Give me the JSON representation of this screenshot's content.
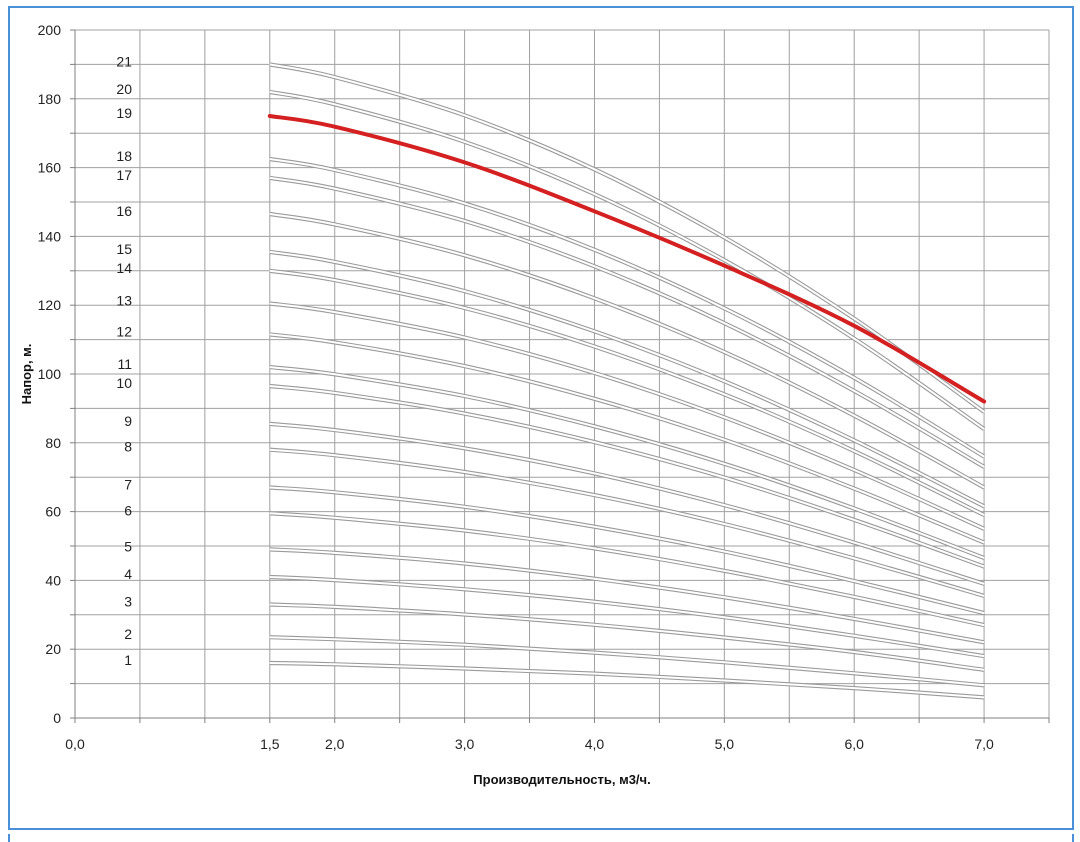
{
  "chart_data": {
    "type": "line",
    "title": "",
    "xlabel": "Производительность, м3/ч.",
    "ylabel": "Напор, м.",
    "xlim": [
      0,
      7.5
    ],
    "ylim": [
      0,
      200
    ],
    "grid": true,
    "legend": "none",
    "x_ticks": [
      {
        "value": 0,
        "label": "0,0"
      },
      {
        "value": 1.5,
        "label": "1,5"
      },
      {
        "value": 2,
        "label": "2,0"
      },
      {
        "value": 3,
        "label": "3,0"
      },
      {
        "value": 4,
        "label": "4,0"
      },
      {
        "value": 5,
        "label": "5,0"
      },
      {
        "value": 6,
        "label": "6,0"
      },
      {
        "value": 7,
        "label": "7,0"
      }
    ],
    "y_ticks": [
      0,
      20,
      40,
      60,
      80,
      100,
      120,
      140,
      160,
      180,
      200
    ],
    "colors": {
      "curve": "#c8c8c8",
      "highlight": "#d42020",
      "grid": "#a0a0a0"
    },
    "x": [
      1.5,
      2,
      3,
      4,
      5,
      6,
      7
    ],
    "series": [
      {
        "name": "1",
        "values": [
          16,
          15.6,
          14.4,
          12.9,
          10.9,
          8.7,
          6
        ]
      },
      {
        "name": "2",
        "values": [
          23.5,
          22.9,
          21.3,
          19,
          16.2,
          13,
          9.5
        ]
      },
      {
        "name": "3",
        "values": [
          33,
          32.3,
          30.1,
          27.1,
          23.4,
          19.2,
          14
        ]
      },
      {
        "name": "4",
        "values": [
          41,
          40.1,
          37.4,
          33.8,
          29.3,
          23.9,
          18
        ]
      },
      {
        "name": "5",
        "values": [
          49,
          48,
          44.9,
          40.5,
          35.1,
          28.8,
          22
        ]
      },
      {
        "name": "6",
        "values": [
          59.5,
          58.2,
          54.5,
          49.3,
          42.8,
          35.2,
          27
        ]
      },
      {
        "name": "7",
        "values": [
          67,
          65.6,
          61.4,
          55.6,
          48.4,
          39.8,
          30.5
        ]
      },
      {
        "name": "8",
        "values": [
          78,
          76.4,
          71.5,
          64.8,
          56.4,
          46.4,
          35.5
        ]
      },
      {
        "name": "9",
        "values": [
          85.5,
          83.7,
          78.4,
          71.1,
          61.9,
          51,
          39
        ]
      },
      {
        "name": "10",
        "values": [
          96.5,
          94.5,
          88.5,
          80.2,
          69.9,
          57.6,
          44
        ]
      },
      {
        "name": "11",
        "values": [
          102,
          99.9,
          93.6,
          84.8,
          73.9,
          60.9,
          46.5
        ]
      },
      {
        "name": "12",
        "values": [
          111.5,
          109.2,
          102.3,
          92.8,
          80.9,
          66.7,
          51
        ]
      },
      {
        "name": "13",
        "values": [
          120.5,
          118,
          110.6,
          100.3,
          87.4,
          72.1,
          55
        ]
      },
      {
        "name": "14",
        "values": [
          130,
          127.3,
          119.2,
          108,
          94.1,
          77.6,
          59
        ]
      },
      {
        "name": "15",
        "values": [
          135.5,
          132.6,
          124.1,
          112.4,
          97.9,
          80.7,
          61.5
        ]
      },
      {
        "name": "16",
        "values": [
          146.5,
          143.5,
          134.5,
          122,
          106.4,
          87.9,
          67
        ]
      },
      {
        "name": "17",
        "values": [
          157,
          153.9,
          144.5,
          131.3,
          114.8,
          95.1,
          73
        ]
      },
      {
        "name": "18",
        "values": [
          162.5,
          159.3,
          149.6,
          136.1,
          119.1,
          98.9,
          76
        ]
      },
      {
        "name": "19",
        "values": [
          175,
          171.9,
          161.5,
          147.3,
          131.5,
          114,
          92
        ],
        "highlight": true
      },
      {
        "name": "20",
        "values": [
          182,
          178.4,
          167.5,
          152.3,
          133.1,
          110.3,
          84
        ]
      },
      {
        "name": "21",
        "values": [
          190,
          186.3,
          175.2,
          159.5,
          139.7,
          116.1,
          89
        ]
      }
    ]
  }
}
